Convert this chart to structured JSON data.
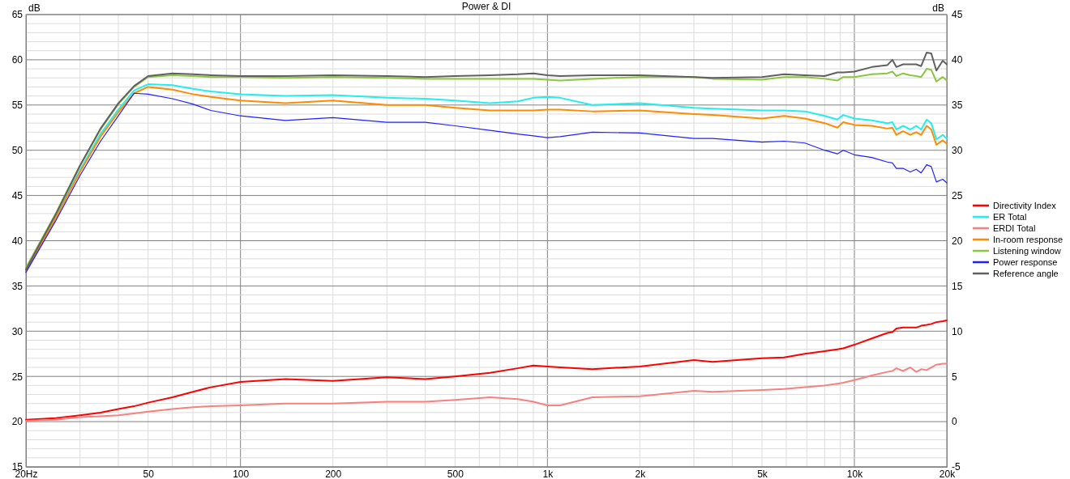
{
  "chart_data": {
    "type": "line",
    "title": "Power & DI",
    "ylabel": "dB",
    "y2label": "dB",
    "log": "x",
    "grid": true,
    "legend": "right",
    "xlim": [
      20,
      20000
    ],
    "xticks": [
      {
        "value": 20,
        "label": "20Hz"
      },
      50,
      100,
      200,
      500,
      {
        "value": 1000,
        "label": "1k"
      },
      {
        "value": 2000,
        "label": "2k"
      },
      {
        "value": 5000,
        "label": "5k"
      },
      {
        "value": 10000,
        "label": "10k"
      },
      {
        "value": 20000,
        "label": "20k"
      }
    ],
    "ylim": [
      15,
      65
    ],
    "yticks": [
      15,
      20,
      25,
      30,
      35,
      40,
      45,
      50,
      55,
      60,
      65
    ],
    "y2lim": [
      -5,
      45
    ],
    "y2ticks": [
      -5,
      0,
      5,
      10,
      15,
      20,
      25,
      30,
      35,
      40,
      45
    ],
    "x": [
      20,
      25,
      30,
      35,
      40,
      45,
      50,
      60,
      70,
      80,
      100,
      140,
      200,
      300,
      400,
      500,
      650,
      800,
      900,
      1000,
      1100,
      1400,
      2000,
      3000,
      3450,
      5000,
      5900,
      6900,
      8000,
      8800,
      9200,
      10000,
      11400,
      12800,
      13300,
      13700,
      14400,
      15200,
      15900,
      16500,
      17200,
      17800,
      18500,
      19400,
      20000
    ],
    "series": [
      {
        "name": "Directivity Index",
        "color": "#ff0000",
        "axis": "y2",
        "values": [
          0.2,
          0.4,
          0.7,
          1.0,
          1.4,
          1.7,
          2.1,
          2.7,
          3.3,
          3.8,
          4.4,
          4.7,
          4.5,
          4.9,
          4.7,
          5.0,
          5.4,
          5.9,
          6.2,
          6.1,
          6.0,
          5.8,
          6.1,
          6.8,
          6.6,
          7.0,
          7.1,
          7.5,
          7.8,
          8.0,
          8.1,
          8.5,
          9.2,
          9.8,
          9.9,
          10.3,
          10.4,
          10.4,
          10.4,
          10.6,
          10.7,
          10.8,
          11.0,
          11.1,
          11.2
        ]
      },
      {
        "name": "ER Total",
        "color": "#22eeee",
        "values": [
          36.6,
          42.6,
          47.8,
          51.8,
          54.5,
          56.6,
          57.3,
          57.2,
          56.8,
          56.5,
          56.2,
          56.0,
          56.1,
          55.8,
          55.7,
          55.5,
          55.2,
          55.4,
          55.8,
          55.9,
          55.8,
          55.0,
          55.2,
          54.7,
          54.6,
          54.4,
          54.4,
          54.3,
          53.8,
          53.4,
          53.9,
          53.5,
          53.3,
          53.0,
          53.1,
          52.3,
          52.7,
          52.3,
          52.7,
          52.3,
          53.4,
          53.0,
          51.2,
          51.7,
          51.3
        ]
      },
      {
        "name": "ERDI Total",
        "color": "#f88080",
        "axis": "y2",
        "values": [
          0.1,
          0.2,
          0.5,
          0.6,
          0.7,
          0.9,
          1.1,
          1.4,
          1.6,
          1.7,
          1.8,
          2.0,
          2.0,
          2.2,
          2.2,
          2.4,
          2.7,
          2.5,
          2.2,
          1.8,
          1.8,
          2.7,
          2.8,
          3.4,
          3.3,
          3.5,
          3.6,
          3.8,
          4.0,
          4.2,
          4.3,
          4.6,
          5.1,
          5.5,
          5.6,
          5.9,
          5.6,
          6.0,
          5.5,
          5.8,
          5.7,
          6.0,
          6.3,
          6.4,
          6.4
        ]
      },
      {
        "name": "In-room response",
        "color": "#ff8c00",
        "values": [
          36.6,
          42.5,
          47.6,
          51.5,
          54.2,
          56.3,
          57.0,
          56.7,
          56.2,
          55.9,
          55.5,
          55.2,
          55.5,
          55.0,
          55.0,
          54.7,
          54.4,
          54.4,
          54.4,
          54.5,
          54.5,
          54.3,
          54.4,
          54.0,
          53.9,
          53.5,
          53.8,
          53.5,
          53.0,
          52.5,
          53.1,
          52.8,
          52.7,
          52.4,
          52.5,
          51.7,
          52.1,
          51.7,
          52.0,
          51.7,
          52.7,
          52.3,
          50.6,
          51.1,
          50.7
        ]
      },
      {
        "name": "Listening window",
        "color": "#8cc63f",
        "values": [
          37.0,
          43.0,
          48.3,
          52.3,
          55.1,
          57.0,
          58.1,
          58.3,
          58.2,
          58.1,
          58.1,
          58.0,
          58.1,
          58.0,
          57.9,
          57.9,
          57.9,
          57.9,
          57.9,
          57.8,
          57.7,
          57.9,
          58.1,
          58.1,
          57.9,
          57.8,
          58.1,
          58.1,
          57.9,
          57.7,
          58.1,
          58.1,
          58.4,
          58.5,
          58.7,
          58.2,
          58.5,
          58.3,
          58.2,
          58.1,
          59.0,
          58.9,
          57.6,
          58.1,
          57.7
        ]
      },
      {
        "name": "Power response",
        "color": "#2020ff",
        "values": [
          36.5,
          42.2,
          47.2,
          51.0,
          53.8,
          56.3,
          56.2,
          55.7,
          55.1,
          54.4,
          53.8,
          53.3,
          53.6,
          53.1,
          53.1,
          52.7,
          52.2,
          51.8,
          51.6,
          51.4,
          51.5,
          52.0,
          51.9,
          51.3,
          51.3,
          50.9,
          51.0,
          50.8,
          50.0,
          49.6,
          50.0,
          49.5,
          49.2,
          48.7,
          48.6,
          48.0,
          48.0,
          47.6,
          47.9,
          47.5,
          48.4,
          48.2,
          46.5,
          46.8,
          46.4
        ]
      },
      {
        "name": "Reference angle",
        "color": "#606060",
        "values": [
          36.8,
          42.9,
          48.3,
          52.4,
          55.2,
          57.1,
          58.2,
          58.5,
          58.4,
          58.3,
          58.2,
          58.2,
          58.3,
          58.2,
          58.1,
          58.2,
          58.3,
          58.4,
          58.5,
          58.3,
          58.2,
          58.3,
          58.3,
          58.1,
          58.0,
          58.1,
          58.4,
          58.3,
          58.2,
          58.6,
          58.6,
          58.7,
          59.2,
          59.4,
          60.0,
          59.2,
          59.5,
          59.5,
          59.5,
          59.3,
          60.8,
          60.7,
          58.8,
          59.9,
          59.5
        ]
      }
    ]
  }
}
